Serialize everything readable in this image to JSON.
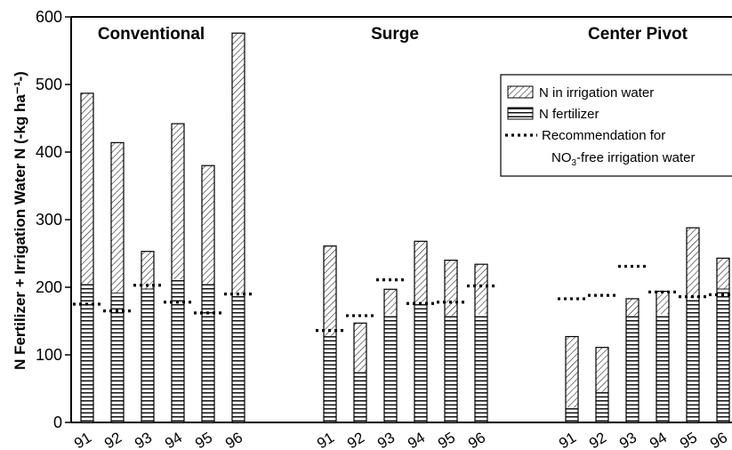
{
  "chart_data": {
    "type": "bar",
    "stacked": true,
    "ylabel": "N Fertilizer + Irrigation Water N (-kg ha⁻¹-)",
    "ylim": [
      0,
      600
    ],
    "yticks": [
      0,
      100,
      200,
      300,
      400,
      500,
      600
    ],
    "legend_position": "top-right",
    "legend": {
      "irrigation": "N in irrigation water",
      "fertilizer": "N fertilizer",
      "rec_line1": "Recommendation for",
      "rec_line2_pre": "NO",
      "rec_line2_sub": "3",
      "rec_line2_post": "-free irrigation water"
    },
    "groups": [
      {
        "title": "Conventional",
        "categories": [
          "91",
          "92",
          "93",
          "94",
          "95",
          "96"
        ],
        "n_fertilizer": [
          205,
          192,
          198,
          212,
          205,
          190
        ],
        "n_irrigation_water": [
          282,
          222,
          55,
          230,
          175,
          386
        ],
        "total": [
          487,
          414,
          253,
          442,
          380,
          576
        ],
        "recommendation": [
          175,
          165,
          203,
          178,
          162,
          190
        ]
      },
      {
        "title": "Surge",
        "categories": [
          "91",
          "92",
          "93",
          "94",
          "95",
          "96"
        ],
        "n_fertilizer": [
          128,
          75,
          160,
          178,
          158,
          160
        ],
        "n_irrigation_water": [
          133,
          72,
          37,
          90,
          82,
          74
        ],
        "total": [
          261,
          147,
          197,
          268,
          240,
          234
        ],
        "recommendation": [
          136,
          158,
          211,
          176,
          178,
          202
        ]
      },
      {
        "title": "Center Pivot",
        "categories": [
          "91",
          "92",
          "93",
          "94",
          "95",
          "96"
        ],
        "n_fertilizer": [
          22,
          45,
          158,
          160,
          185,
          198
        ],
        "n_irrigation_water": [
          105,
          66,
          25,
          34,
          103,
          45
        ],
        "total": [
          127,
          111,
          183,
          194,
          288,
          243
        ],
        "recommendation": [
          183,
          188,
          231,
          193,
          186,
          189
        ]
      }
    ]
  }
}
